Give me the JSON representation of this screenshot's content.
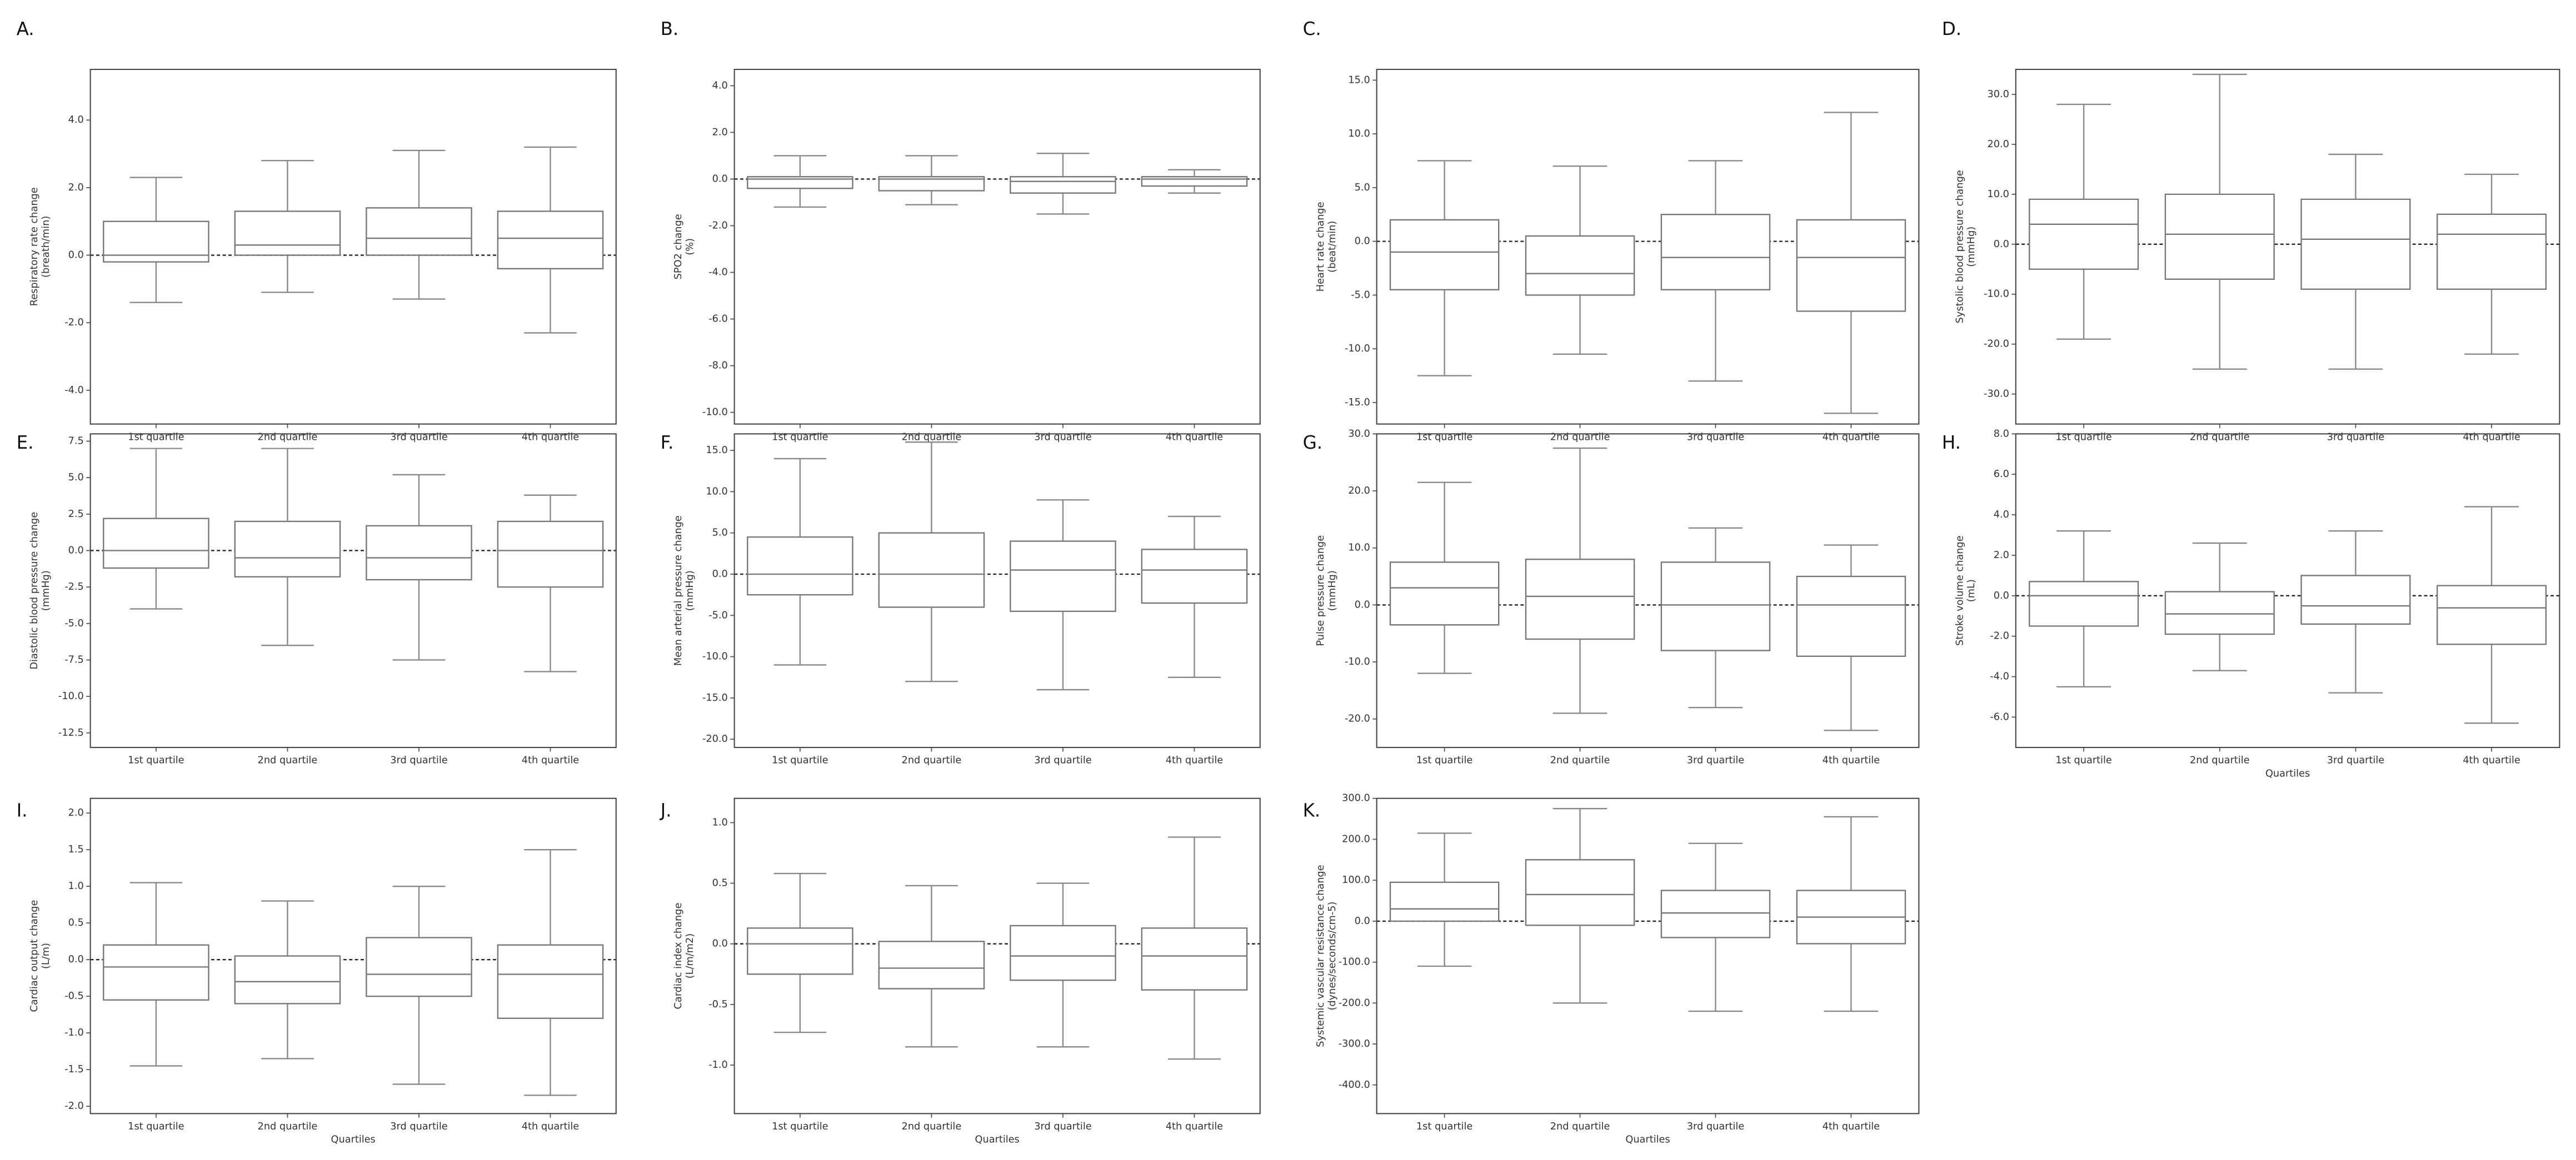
{
  "chart_data": [
    {
      "type": "box",
      "label": "A.",
      "ylabel": [
        "Respiratory rate change",
        "(breath/min)"
      ],
      "categories": [
        "1st quartile",
        "2nd quartile",
        "3rd quartile",
        "4th quartile"
      ],
      "boxes": [
        {
          "whisker_low": -1.4,
          "q1": -0.2,
          "median": 0,
          "q3": 1.0,
          "whisker_high": 2.3
        },
        {
          "whisker_low": -1.1,
          "q1": 0,
          "median": 0.3,
          "q3": 1.3,
          "whisker_high": 2.8
        },
        {
          "whisker_low": -1.3,
          "q1": 0,
          "median": 0.5,
          "q3": 1.4,
          "whisker_high": 3.1
        },
        {
          "whisker_low": -2.3,
          "q1": -0.4,
          "median": 0.5,
          "q3": 1.3,
          "whisker_high": 3.2
        }
      ],
      "hline": 0,
      "ylim": [
        -5,
        5.5
      ],
      "yticks": [
        {
          "value": -4,
          "label": "-4.0"
        },
        {
          "value": -2,
          "label": "-2.0"
        },
        {
          "value": 0,
          "label": "0.0"
        },
        {
          "value": 2,
          "label": "2.0"
        },
        {
          "value": 4,
          "label": "4.0"
        }
      ]
    },
    {
      "type": "box",
      "label": "B.",
      "ylabel": [
        "SPO2 change",
        "(%)"
      ],
      "categories": [
        "1st quartile",
        "2nd quartile",
        "3rd quartile",
        "4th quartile"
      ],
      "boxes": [
        {
          "whisker_low": -1.2,
          "q1": -0.4,
          "median": 0,
          "q3": 0.1,
          "whisker_high": 1.0
        },
        {
          "whisker_low": -1.1,
          "q1": -0.5,
          "median": 0,
          "q3": 0.1,
          "whisker_high": 1.0
        },
        {
          "whisker_low": -1.5,
          "q1": -0.6,
          "median": -0.1,
          "q3": 0.1,
          "whisker_high": 1.1
        },
        {
          "whisker_low": -0.6,
          "q1": -0.3,
          "median": 0,
          "q3": 0.1,
          "whisker_high": 0.4
        }
      ],
      "hline": 0,
      "ylim": [
        -10.5,
        4.7
      ],
      "yticks": [
        {
          "value": -10,
          "label": "-10.0"
        },
        {
          "value": -8,
          "label": "-8.0"
        },
        {
          "value": -6,
          "label": "-6.0"
        },
        {
          "value": -4,
          "label": "-4.0"
        },
        {
          "value": -2,
          "label": "-2.0"
        },
        {
          "value": 0,
          "label": "0.0"
        },
        {
          "value": 2,
          "label": "2.0"
        },
        {
          "value": 4,
          "label": "4.0"
        }
      ]
    },
    {
      "type": "box",
      "label": "C.",
      "ylabel": [
        "Heart rate change",
        "(beat/min)"
      ],
      "categories": [
        "1st quartile",
        "2nd quartile",
        "3rd quartile",
        "4th quartile"
      ],
      "boxes": [
        {
          "whisker_low": -12.5,
          "q1": -4.5,
          "median": -1,
          "q3": 2,
          "whisker_high": 7.5
        },
        {
          "whisker_low": -10.5,
          "q1": -5,
          "median": -3,
          "q3": 0.5,
          "whisker_high": 7
        },
        {
          "whisker_low": -13,
          "q1": -4.5,
          "median": -1.5,
          "q3": 2.5,
          "whisker_high": 7.5
        },
        {
          "whisker_low": -16,
          "q1": -6.5,
          "median": -1.5,
          "q3": 2,
          "whisker_high": 12
        }
      ],
      "hline": 0,
      "ylim": [
        -17,
        16
      ],
      "yticks": [
        {
          "value": -15,
          "label": "-15.0"
        },
        {
          "value": -10,
          "label": "-10.0"
        },
        {
          "value": -5,
          "label": "-5.0"
        },
        {
          "value": 0,
          "label": "0.0"
        },
        {
          "value": 5,
          "label": "5.0"
        },
        {
          "value": 10,
          "label": "10.0"
        },
        {
          "value": 15,
          "label": "15.0"
        }
      ]
    },
    {
      "type": "box",
      "label": "D.",
      "ylabel": [
        "Systolic blood pressure change",
        "(mmHg)"
      ],
      "categories": [
        "1st quartile",
        "2nd quartile",
        "3rd quartile",
        "4th quartile"
      ],
      "boxes": [
        {
          "whisker_low": -19,
          "q1": -5,
          "median": 4,
          "q3": 9,
          "whisker_high": 28
        },
        {
          "whisker_low": -25,
          "q1": -7,
          "median": 2,
          "q3": 10,
          "whisker_high": 34
        },
        {
          "whisker_low": -25,
          "q1": -9,
          "median": 1,
          "q3": 9,
          "whisker_high": 18
        },
        {
          "whisker_low": -22,
          "q1": -9,
          "median": 2,
          "q3": 6,
          "whisker_high": 14
        }
      ],
      "hline": 0,
      "ylim": [
        -36,
        35
      ],
      "yticks": [
        {
          "value": -30,
          "label": "-30.0"
        },
        {
          "value": -20,
          "label": "-20.0"
        },
        {
          "value": -10,
          "label": "-10.0"
        },
        {
          "value": 0,
          "label": "0.0"
        },
        {
          "value": 10,
          "label": "10.0"
        },
        {
          "value": 20,
          "label": "20.0"
        },
        {
          "value": 30,
          "label": "30.0"
        }
      ]
    },
    {
      "type": "box",
      "label": "E.",
      "ylabel": [
        "Diastolic blood pressure change",
        "(mmHg)"
      ],
      "categories": [
        "1st quartile",
        "2nd quartile",
        "3rd quartile",
        "4th quartile"
      ],
      "boxes": [
        {
          "whisker_low": -4,
          "q1": -1.2,
          "median": 0,
          "q3": 2.2,
          "whisker_high": 7
        },
        {
          "whisker_low": -6.5,
          "q1": -1.8,
          "median": -0.5,
          "q3": 2,
          "whisker_high": 7
        },
        {
          "whisker_low": -7.5,
          "q1": -2,
          "median": -0.5,
          "q3": 1.7,
          "whisker_high": 5.2
        },
        {
          "whisker_low": -8.3,
          "q1": -2.5,
          "median": 0,
          "q3": 2,
          "whisker_high": 3.8
        }
      ],
      "hline": 0,
      "ylim": [
        -13.5,
        8
      ],
      "yticks": [
        {
          "value": -12.5,
          "label": "-12.5"
        },
        {
          "value": -10,
          "label": "-10.0"
        },
        {
          "value": -7.5,
          "label": "-7.5"
        },
        {
          "value": -5,
          "label": "-5.0"
        },
        {
          "value": -2.5,
          "label": "-2.5"
        },
        {
          "value": 0,
          "label": "0.0"
        },
        {
          "value": 2.5,
          "label": "2.5"
        },
        {
          "value": 5,
          "label": "5.0"
        },
        {
          "value": 7.5,
          "label": "7.5"
        }
      ]
    },
    {
      "type": "box",
      "label": "F.",
      "ylabel": [
        "Mean arterial pressure change",
        "(mmHg)"
      ],
      "categories": [
        "1st quartile",
        "2nd quartile",
        "3rd quartile",
        "4th quartile"
      ],
      "boxes": [
        {
          "whisker_low": -11,
          "q1": -2.5,
          "median": 0,
          "q3": 4.5,
          "whisker_high": 14
        },
        {
          "whisker_low": -13,
          "q1": -4,
          "median": 0,
          "q3": 5,
          "whisker_high": 16
        },
        {
          "whisker_low": -14,
          "q1": -4.5,
          "median": 0.5,
          "q3": 4,
          "whisker_high": 9
        },
        {
          "whisker_low": -12.5,
          "q1": -3.5,
          "median": 0.5,
          "q3": 3,
          "whisker_high": 7
        }
      ],
      "hline": 0,
      "ylim": [
        -21,
        17
      ],
      "yticks": [
        {
          "value": -20,
          "label": "-20.0"
        },
        {
          "value": -15,
          "label": "-15.0"
        },
        {
          "value": -10,
          "label": "-10.0"
        },
        {
          "value": -5,
          "label": "-5.0"
        },
        {
          "value": 0,
          "label": "0.0"
        },
        {
          "value": 5,
          "label": "5.0"
        },
        {
          "value": 10,
          "label": "10.0"
        },
        {
          "value": 15,
          "label": "15.0"
        }
      ]
    },
    {
      "type": "box",
      "label": "G.",
      "ylabel": [
        "Pulse pressure change",
        "(mmHg)"
      ],
      "categories": [
        "1st quartile",
        "2nd quartile",
        "3rd quartile",
        "4th quartile"
      ],
      "boxes": [
        {
          "whisker_low": -12,
          "q1": -3.5,
          "median": 3,
          "q3": 7.5,
          "whisker_high": 21.5
        },
        {
          "whisker_low": -19,
          "q1": -6,
          "median": 1.5,
          "q3": 8,
          "whisker_high": 27.5
        },
        {
          "whisker_low": -18,
          "q1": -8,
          "median": 0,
          "q3": 7.5,
          "whisker_high": 13.5
        },
        {
          "whisker_low": -22,
          "q1": -9,
          "median": 0,
          "q3": 5,
          "whisker_high": 10.5
        }
      ],
      "hline": 0,
      "ylim": [
        -25,
        30
      ],
      "yticks": [
        {
          "value": -20,
          "label": "-20.0"
        },
        {
          "value": -10,
          "label": "-10.0"
        },
        {
          "value": 0,
          "label": "0.0"
        },
        {
          "value": 10,
          "label": "10.0"
        },
        {
          "value": 20,
          "label": "20.0"
        },
        {
          "value": 30,
          "label": "30.0"
        }
      ]
    },
    {
      "type": "box",
      "label": "H.",
      "ylabel": [
        "Stroke volume change",
        "(mL)"
      ],
      "xlabel": "Quartiles",
      "categories": [
        "1st quartile",
        "2nd quartile",
        "3rd quartile",
        "4th quartile"
      ],
      "boxes": [
        {
          "whisker_low": -4.5,
          "q1": -1.5,
          "median": 0,
          "q3": 0.7,
          "whisker_high": 3.2
        },
        {
          "whisker_low": -3.7,
          "q1": -1.9,
          "median": -0.9,
          "q3": 0.2,
          "whisker_high": 2.6
        },
        {
          "whisker_low": -4.8,
          "q1": -1.4,
          "median": -0.5,
          "q3": 1,
          "whisker_high": 3.2
        },
        {
          "whisker_low": -6.3,
          "q1": -2.4,
          "median": -0.6,
          "q3": 0.5,
          "whisker_high": 4.4
        }
      ],
      "hline": 0,
      "ylim": [
        -7.5,
        8
      ],
      "yticks": [
        {
          "value": -6,
          "label": "-6.0"
        },
        {
          "value": -4,
          "label": "-4.0"
        },
        {
          "value": -2,
          "label": "-2.0"
        },
        {
          "value": 0,
          "label": "0.0"
        },
        {
          "value": 2,
          "label": "2.0"
        },
        {
          "value": 4,
          "label": "4.0"
        },
        {
          "value": 6,
          "label": "6.0"
        },
        {
          "value": 8,
          "label": "8.0"
        }
      ]
    },
    {
      "type": "box",
      "label": "I.",
      "ylabel": [
        "Cardiac output change",
        "(L/m)"
      ],
      "xlabel": "Quartiles",
      "categories": [
        "1st quartile",
        "2nd quartile",
        "3rd quartile",
        "4th quartile"
      ],
      "boxes": [
        {
          "whisker_low": -1.45,
          "q1": -0.55,
          "median": -0.1,
          "q3": 0.2,
          "whisker_high": 1.05
        },
        {
          "whisker_low": -1.35,
          "q1": -0.6,
          "median": -0.3,
          "q3": 0.05,
          "whisker_high": 0.8
        },
        {
          "whisker_low": -1.7,
          "q1": -0.5,
          "median": -0.2,
          "q3": 0.3,
          "whisker_high": 1.0
        },
        {
          "whisker_low": -1.85,
          "q1": -0.8,
          "median": -0.2,
          "q3": 0.2,
          "whisker_high": 1.5
        }
      ],
      "hline": 0,
      "ylim": [
        -2.1,
        2.2
      ],
      "yticks": [
        {
          "value": -2,
          "label": "-2.0"
        },
        {
          "value": -1.5,
          "label": "-1.5"
        },
        {
          "value": -1,
          "label": "-1.0"
        },
        {
          "value": -0.5,
          "label": "-0.5"
        },
        {
          "value": 0,
          "label": "0.0"
        },
        {
          "value": 0.5,
          "label": "0.5"
        },
        {
          "value": 1,
          "label": "1.0"
        },
        {
          "value": 1.5,
          "label": "1.5"
        },
        {
          "value": 2,
          "label": "2.0"
        }
      ]
    },
    {
      "type": "box",
      "label": "J.",
      "ylabel": [
        "Cardiac index change",
        "(L/m/m2)"
      ],
      "xlabel": "Quartiles",
      "categories": [
        "1st quartile",
        "2nd quartile",
        "3rd quartile",
        "4th quartile"
      ],
      "boxes": [
        {
          "whisker_low": -0.73,
          "q1": -0.25,
          "median": 0,
          "q3": 0.13,
          "whisker_high": 0.58
        },
        {
          "whisker_low": -0.85,
          "q1": -0.37,
          "median": -0.2,
          "q3": 0.02,
          "whisker_high": 0.48
        },
        {
          "whisker_low": -0.85,
          "q1": -0.3,
          "median": -0.1,
          "q3": 0.15,
          "whisker_high": 0.5
        },
        {
          "whisker_low": -0.95,
          "q1": -0.38,
          "median": -0.1,
          "q3": 0.13,
          "whisker_high": 0.88
        }
      ],
      "hline": 0,
      "ylim": [
        -1.4,
        1.2
      ],
      "yticks": [
        {
          "value": -1,
          "label": "-1.0"
        },
        {
          "value": -0.5,
          "label": "-0.5"
        },
        {
          "value": 0,
          "label": "0.0"
        },
        {
          "value": 0.5,
          "label": "0.5"
        },
        {
          "value": 1,
          "label": "1.0"
        }
      ]
    },
    {
      "type": "box",
      "label": "K.",
      "ylabel": [
        "Systemic vascular resistance change",
        "(dynes/seconds/cm-5)"
      ],
      "xlabel": "Quartiles",
      "categories": [
        "1st quartile",
        "2nd quartile",
        "3rd quartile",
        "4th quartile"
      ],
      "boxes": [
        {
          "whisker_low": -110,
          "q1": 0,
          "median": 30,
          "q3": 95,
          "whisker_high": 215
        },
        {
          "whisker_low": -200,
          "q1": -10,
          "median": 65,
          "q3": 150,
          "whisker_high": 275
        },
        {
          "whisker_low": -220,
          "q1": -40,
          "median": 20,
          "q3": 75,
          "whisker_high": 190
        },
        {
          "whisker_low": -220,
          "q1": -55,
          "median": 10,
          "q3": 75,
          "whisker_high": 255
        }
      ],
      "hline": 0,
      "ylim": [
        -470,
        300
      ],
      "yticks": [
        {
          "value": -400,
          "label": "-400.0"
        },
        {
          "value": -300,
          "label": "-300.0"
        },
        {
          "value": -200,
          "label": "-200.0"
        },
        {
          "value": -100,
          "label": "-100.0"
        },
        {
          "value": 0,
          "label": "0.0"
        },
        {
          "value": 100,
          "label": "100.0"
        },
        {
          "value": 200,
          "label": "200.0"
        },
        {
          "value": 300,
          "label": "300.0"
        }
      ]
    }
  ]
}
